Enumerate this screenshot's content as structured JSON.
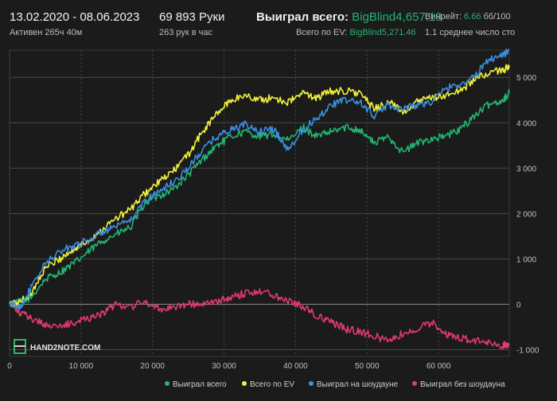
{
  "header": {
    "date_range": "13.02.2020 - 08.06.2023",
    "active": "Активен 265ч 40м",
    "hands": "69 893 Руки",
    "hands_per_hour": "263 рук в час",
    "won_total_label": "Выиграл всего:",
    "won_total_unit": "BigBlind",
    "won_total_value": "4,657.19",
    "ev_total_label": "Всего по EV:",
    "ev_total_unit": "BigBlind",
    "ev_total_value": "5,271.46",
    "winrate_label": "Винрейт:",
    "winrate_value": "6.66",
    "winrate_unit": "бб/100",
    "avg_stack": "1.1 среднее число сто"
  },
  "logo_text": "HAND2NOTE.COM",
  "icons": {
    "settings": "gear-icon"
  },
  "colors": {
    "background": "#1b1b1b",
    "won_total": "#22b573",
    "ev_total": "#f2f23a",
    "won_showdown": "#3a8fe0",
    "won_no_showdown": "#e03a6e",
    "grid": "#4a4a4a",
    "zero_line": "#8c8c8c"
  },
  "chart_data": {
    "type": "line",
    "x_ticks": [
      0,
      10000,
      20000,
      30000,
      40000,
      50000,
      60000
    ],
    "x_tick_labels": [
      "0",
      "10 000",
      "20 000",
      "30 000",
      "40 000",
      "50 000",
      "60 000"
    ],
    "y_ticks": [
      -1000,
      0,
      1000,
      2000,
      3000,
      4000,
      5000
    ],
    "y_tick_labels": [
      "-1 000",
      "0",
      "1 000",
      "2 000",
      "3 000",
      "4 000",
      "5 000"
    ],
    "xlim": [
      0,
      69893
    ],
    "ylim": [
      -1150,
      5600
    ],
    "grid": true,
    "legend_position": "bottom",
    "x": [
      0,
      1500,
      3000,
      5000,
      7000,
      9000,
      11000,
      13000,
      15000,
      17000,
      19000,
      21000,
      23000,
      25000,
      27000,
      29000,
      31000,
      33000,
      35000,
      37000,
      39000,
      41000,
      43000,
      45000,
      47000,
      49000,
      51000,
      53000,
      55000,
      57000,
      59000,
      61000,
      63000,
      65000,
      67000,
      69000,
      69893
    ],
    "series": [
      {
        "name": "Выиграл всего",
        "values": [
          0,
          50,
          150,
          550,
          700,
          900,
          1150,
          1400,
          1550,
          1700,
          2250,
          2400,
          2550,
          2850,
          3200,
          3500,
          3700,
          3800,
          3700,
          3750,
          3600,
          3900,
          3700,
          3800,
          3900,
          3850,
          3550,
          3700,
          3350,
          3550,
          3650,
          3700,
          3850,
          4150,
          4400,
          4500,
          4657
        ]
      },
      {
        "name": "Всего по EV",
        "values": [
          0,
          50,
          250,
          800,
          1000,
          1200,
          1400,
          1650,
          1900,
          2100,
          2450,
          2700,
          2950,
          3300,
          3800,
          4200,
          4500,
          4600,
          4500,
          4550,
          4450,
          4650,
          4550,
          4700,
          4700,
          4650,
          4300,
          4450,
          4250,
          4450,
          4550,
          4600,
          4700,
          4950,
          5100,
          5150,
          5271
        ]
      },
      {
        "name": "Выиграл на шоудауне",
        "values": [
          0,
          -50,
          350,
          900,
          1150,
          1300,
          1400,
          1600,
          1700,
          1850,
          2300,
          2500,
          2700,
          3000,
          3400,
          3700,
          3850,
          3950,
          3800,
          3850,
          3400,
          3850,
          4100,
          4400,
          4500,
          4450,
          4150,
          4400,
          4300,
          4400,
          4450,
          4750,
          4850,
          5000,
          5400,
          5500,
          5600
        ]
      },
      {
        "name": "Выиграл без шоудауна",
        "values": [
          0,
          -200,
          -300,
          -450,
          -500,
          -400,
          -300,
          -200,
          0,
          -50,
          50,
          -100,
          -50,
          0,
          0,
          50,
          150,
          250,
          300,
          200,
          100,
          -50,
          -250,
          -400,
          -550,
          -600,
          -700,
          -800,
          -650,
          -550,
          -400,
          -650,
          -750,
          -800,
          -850,
          -900,
          -880
        ]
      }
    ]
  }
}
